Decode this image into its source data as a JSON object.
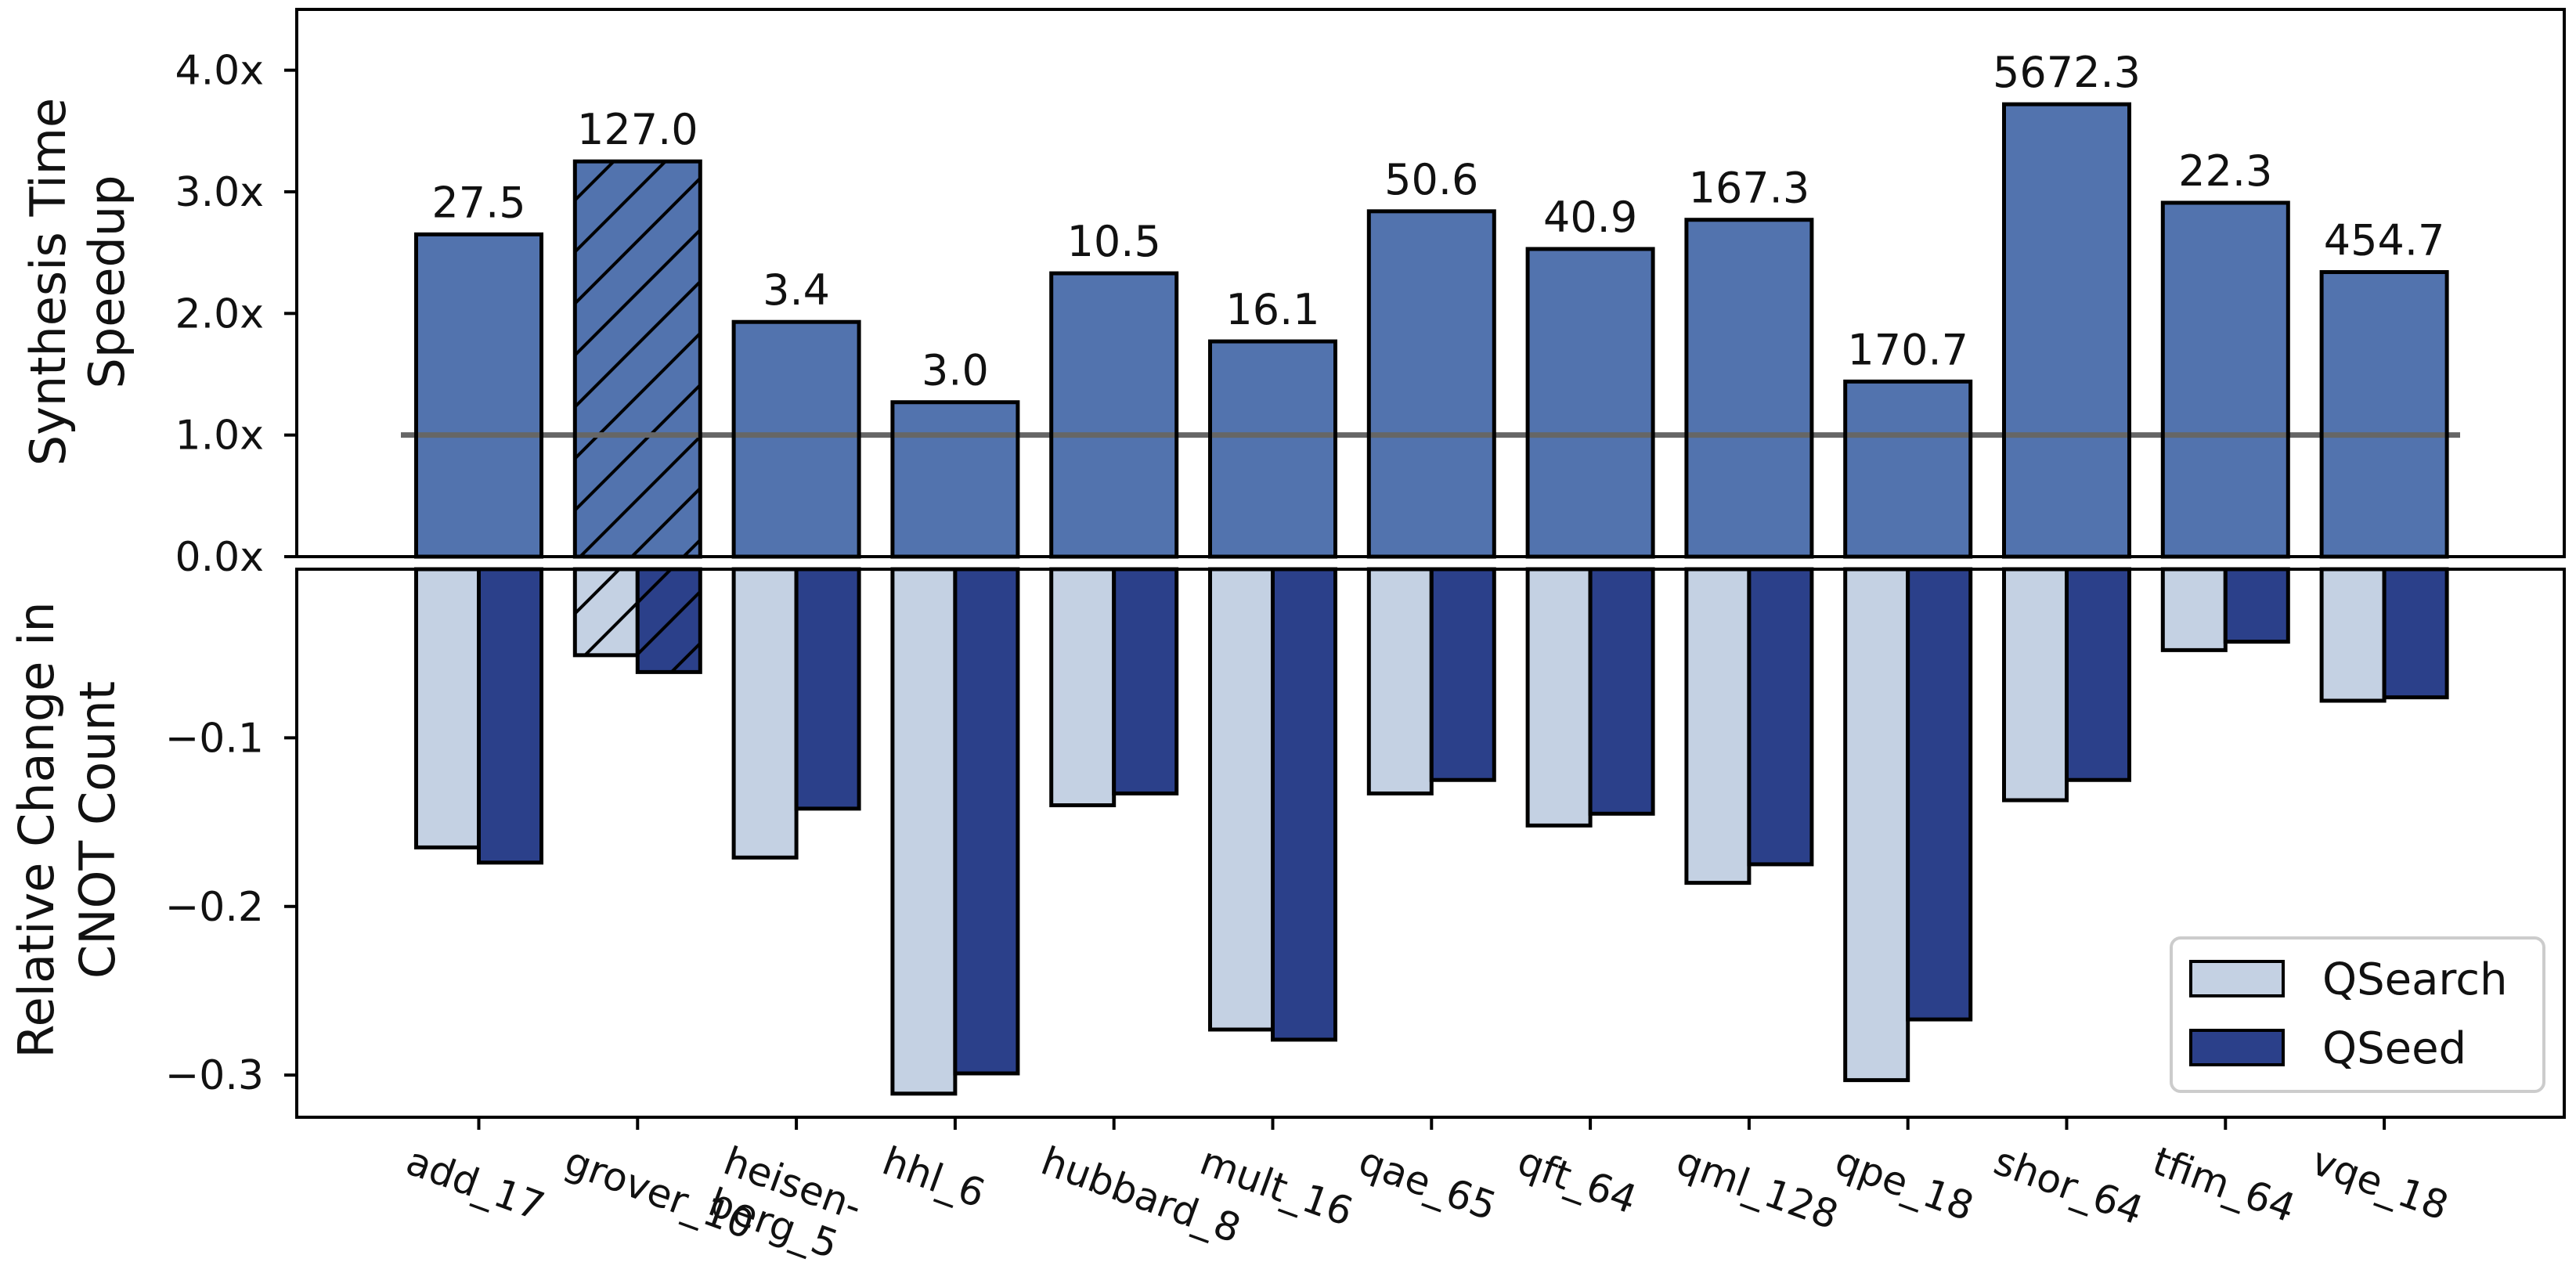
{
  "chart_data": [
    {
      "type": "bar",
      "ylabel_lines": [
        "Synthesis Time",
        "Speedup"
      ],
      "ylim": [
        0,
        4.5
      ],
      "yticks": [
        0,
        1,
        2,
        3,
        4
      ],
      "ytick_labels": [
        "0.0x",
        "1.0x",
        "2.0x",
        "3.0x",
        "4.0x"
      ],
      "reference_line": 1.0,
      "categories": [
        "add_17",
        "grover_10",
        "heisen-berg_5",
        "hhl_6",
        "hubbard_8",
        "mult_16",
        "qae_65",
        "qft_64",
        "qml_128",
        "qpe_18",
        "shor_64",
        "tfim_64",
        "vqe_18"
      ],
      "values": [
        2.65,
        3.25,
        1.93,
        1.27,
        2.33,
        1.77,
        2.84,
        2.53,
        2.77,
        1.44,
        3.72,
        2.91,
        2.34
      ],
      "data_labels": [
        "27.5",
        "127.0",
        "3.4",
        "3.0",
        "10.5",
        "16.1",
        "50.6",
        "40.9",
        "167.3",
        "170.7",
        "5672.3",
        "22.3",
        "454.7"
      ],
      "hatched": [
        "grover_10"
      ],
      "color": "#5273ae"
    },
    {
      "type": "bar",
      "ylabel_lines": [
        "Relative Change in",
        "CNOT Count"
      ],
      "ylim": [
        -0.325,
        0.0
      ],
      "yticks": [
        -0.1,
        -0.2,
        -0.3
      ],
      "ytick_labels": [
        "−0.1",
        "−0.2",
        "−0.3"
      ],
      "categories": [
        "add_17",
        "grover_10",
        "heisen-berg_5",
        "hhl_6",
        "hubbard_8",
        "mult_16",
        "qae_65",
        "qft_64",
        "qml_128",
        "qpe_18",
        "shor_64",
        "tfim_64",
        "vqe_18"
      ],
      "category_label_lines": [
        [
          "add_17"
        ],
        [
          "grover_10"
        ],
        [
          "heisen-",
          "berg_5"
        ],
        [
          "hhl_6"
        ],
        [
          "hubbard_8"
        ],
        [
          "mult_16"
        ],
        [
          "qae_65"
        ],
        [
          "qft_64"
        ],
        [
          "qml_128"
        ],
        [
          "qpe_18"
        ],
        [
          "shor_64"
        ],
        [
          "tfim_64"
        ],
        [
          "vqe_18"
        ]
      ],
      "hatched": [
        "grover_10"
      ],
      "series": [
        {
          "name": "QSearch",
          "color": "#c4d1e3",
          "values": [
            -0.165,
            -0.051,
            -0.171,
            -0.311,
            -0.14,
            -0.273,
            -0.133,
            -0.152,
            -0.186,
            -0.303,
            -0.137,
            -0.048,
            -0.078
          ]
        },
        {
          "name": "QSeed",
          "color": "#2b408a",
          "values": [
            -0.174,
            -0.061,
            -0.142,
            -0.299,
            -0.133,
            -0.279,
            -0.125,
            -0.145,
            -0.175,
            -0.267,
            -0.125,
            -0.043,
            -0.076
          ]
        }
      ],
      "legend_position": "lower-right"
    }
  ]
}
